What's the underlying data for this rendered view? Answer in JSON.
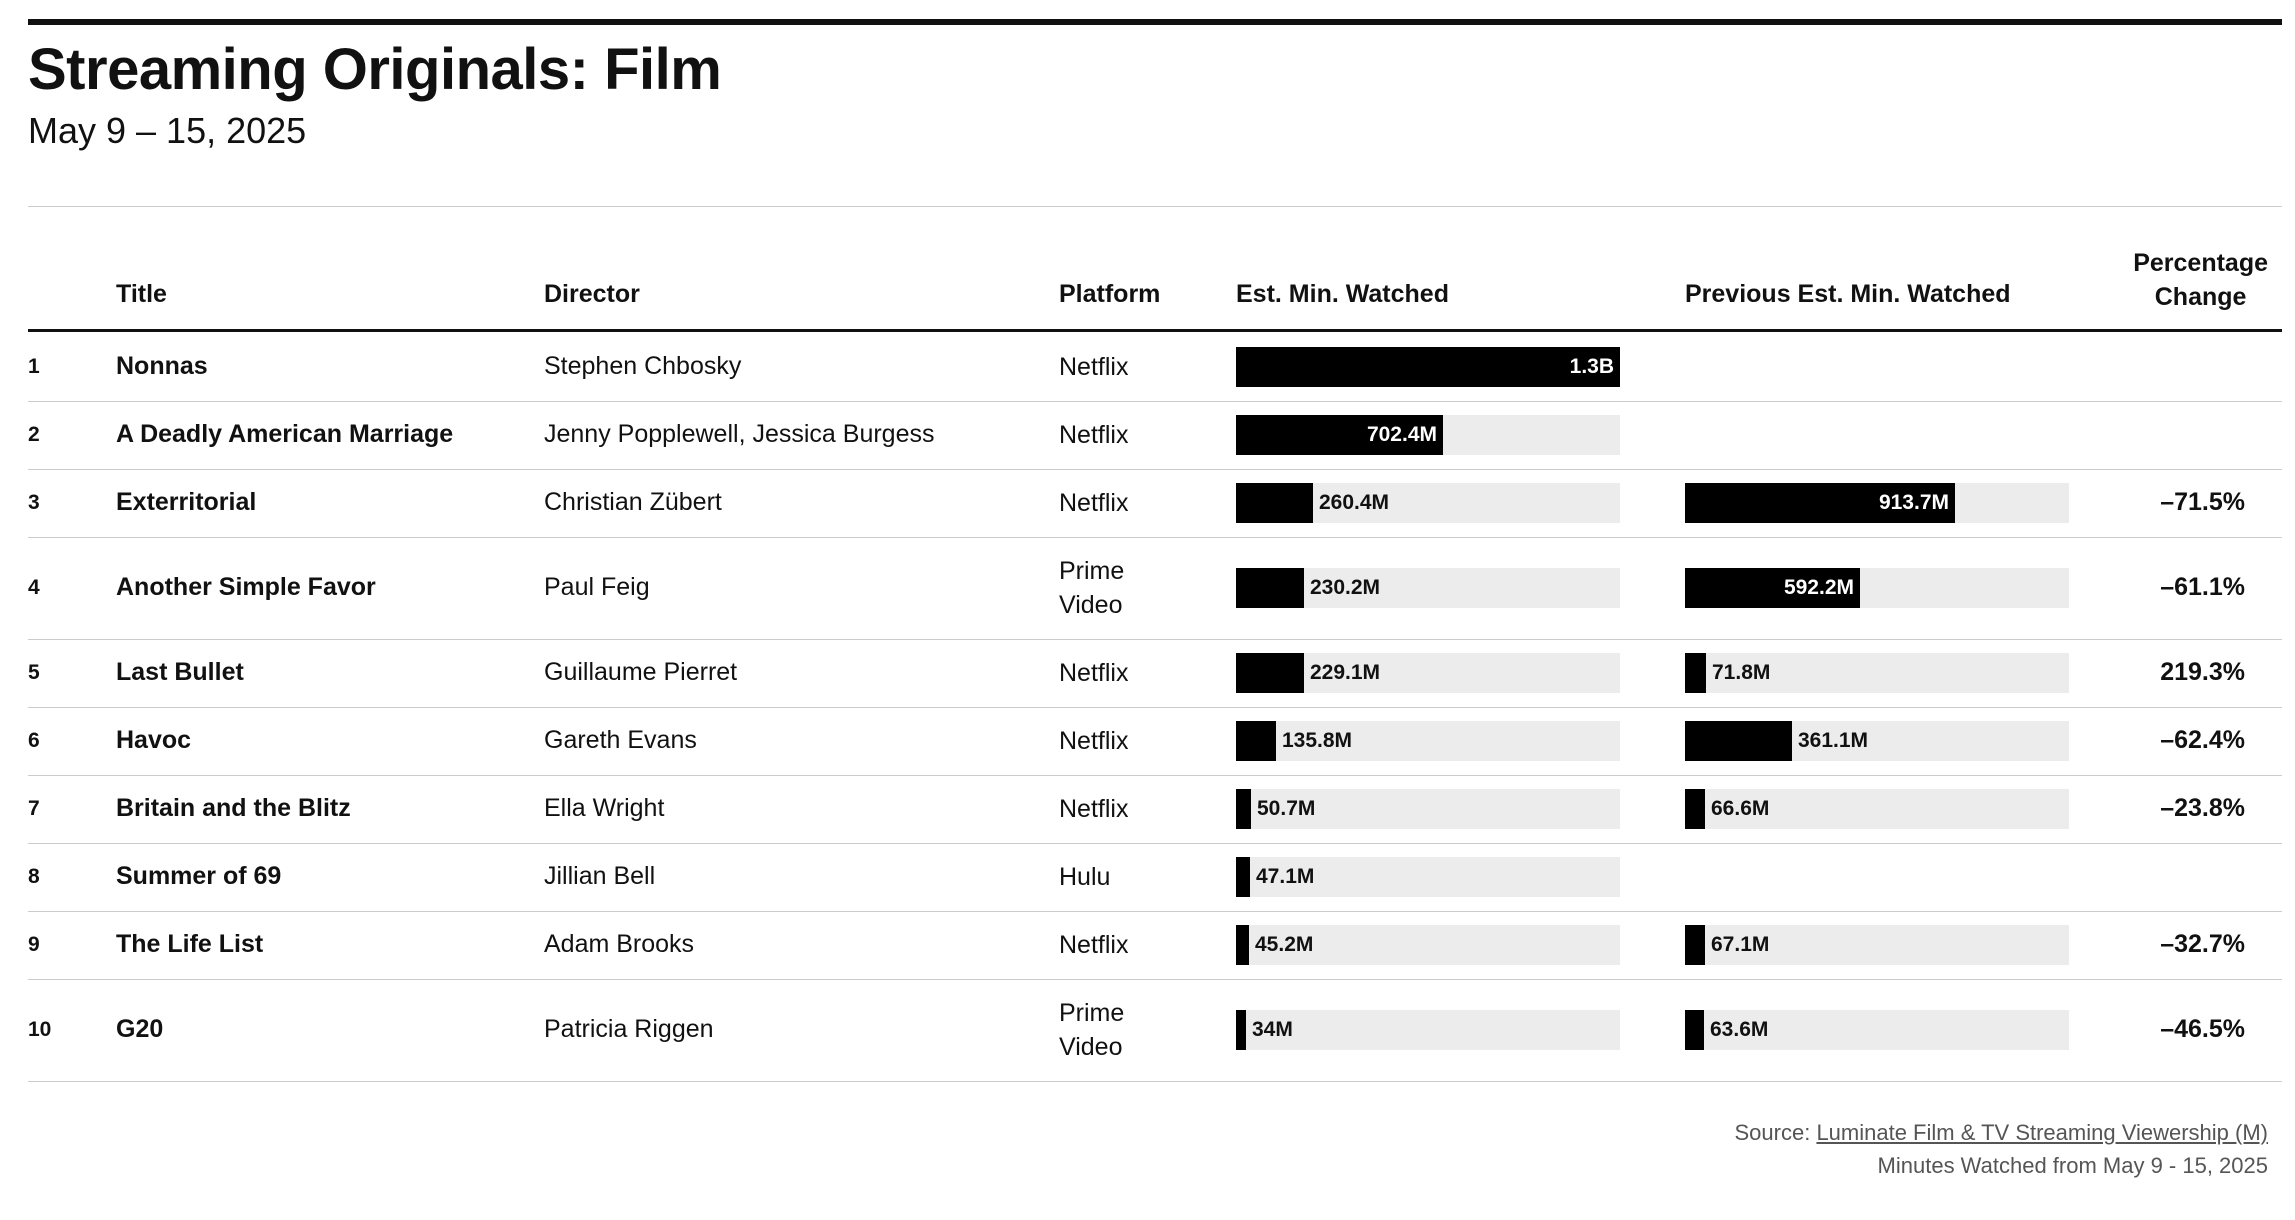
{
  "title": "Streaming Originals: Film",
  "subtitle": "May 9 – 15, 2025",
  "columns": {
    "title": "Title",
    "director": "Director",
    "platform": "Platform",
    "est": "Est. Min. Watched",
    "prev": "Previous Est. Min. Watched",
    "pct_line1": "Percentage",
    "pct_line2": "Change"
  },
  "source_prefix": "Source: ",
  "source_link": "Luminate Film & TV Streaming Viewership (M)",
  "note": "Minutes Watched from May 9 - 15, 2025",
  "colors": {
    "bar": "#000000",
    "track": "#ececec",
    "rule": "#111111"
  },
  "chart_data": {
    "type": "table",
    "scale_max_minutes_millions": 1300,
    "rows": [
      {
        "rank": "1",
        "title": "Nonnas",
        "director": "Stephen Chbosky",
        "platform": [
          "Netflix"
        ],
        "est": 1300,
        "est_label": "1.3B",
        "prev": null,
        "prev_label": "",
        "pct": ""
      },
      {
        "rank": "2",
        "title": "A Deadly American Marriage",
        "director": "Jenny Popplewell, Jessica Burgess",
        "platform": [
          "Netflix"
        ],
        "est": 702.4,
        "est_label": "702.4M",
        "prev": null,
        "prev_label": "",
        "pct": ""
      },
      {
        "rank": "3",
        "title": "Exterritorial",
        "director": "Christian Zübert",
        "platform": [
          "Netflix"
        ],
        "est": 260.4,
        "est_label": "260.4M",
        "prev": 913.7,
        "prev_label": "913.7M",
        "pct": "–71.5%"
      },
      {
        "rank": "4",
        "title": "Another Simple Favor",
        "director": "Paul Feig",
        "platform": [
          "Prime",
          "Video"
        ],
        "est": 230.2,
        "est_label": "230.2M",
        "prev": 592.2,
        "prev_label": "592.2M",
        "pct": "–61.1%"
      },
      {
        "rank": "5",
        "title": "Last Bullet",
        "director": "Guillaume Pierret",
        "platform": [
          "Netflix"
        ],
        "est": 229.1,
        "est_label": "229.1M",
        "prev": 71.8,
        "prev_label": "71.8M",
        "pct": "219.3%"
      },
      {
        "rank": "6",
        "title": "Havoc",
        "director": "Gareth Evans",
        "platform": [
          "Netflix"
        ],
        "est": 135.8,
        "est_label": "135.8M",
        "prev": 361.1,
        "prev_label": "361.1M",
        "pct": "–62.4%"
      },
      {
        "rank": "7",
        "title": "Britain and the Blitz",
        "director": "Ella Wright",
        "platform": [
          "Netflix"
        ],
        "est": 50.7,
        "est_label": "50.7M",
        "prev": 66.6,
        "prev_label": "66.6M",
        "pct": "–23.8%"
      },
      {
        "rank": "8",
        "title": "Summer of 69",
        "director": "Jillian Bell",
        "platform": [
          "Hulu"
        ],
        "est": 47.1,
        "est_label": "47.1M",
        "prev": null,
        "prev_label": "",
        "pct": ""
      },
      {
        "rank": "9",
        "title": "The Life List",
        "director": "Adam Brooks",
        "platform": [
          "Netflix"
        ],
        "est": 45.2,
        "est_label": "45.2M",
        "prev": 67.1,
        "prev_label": "67.1M",
        "pct": "–32.7%"
      },
      {
        "rank": "10",
        "title": "G20",
        "director": "Patricia Riggen",
        "platform": [
          "Prime",
          "Video"
        ],
        "est": 34,
        "est_label": "34M",
        "prev": 63.6,
        "prev_label": "63.6M",
        "pct": "–46.5%"
      }
    ]
  }
}
